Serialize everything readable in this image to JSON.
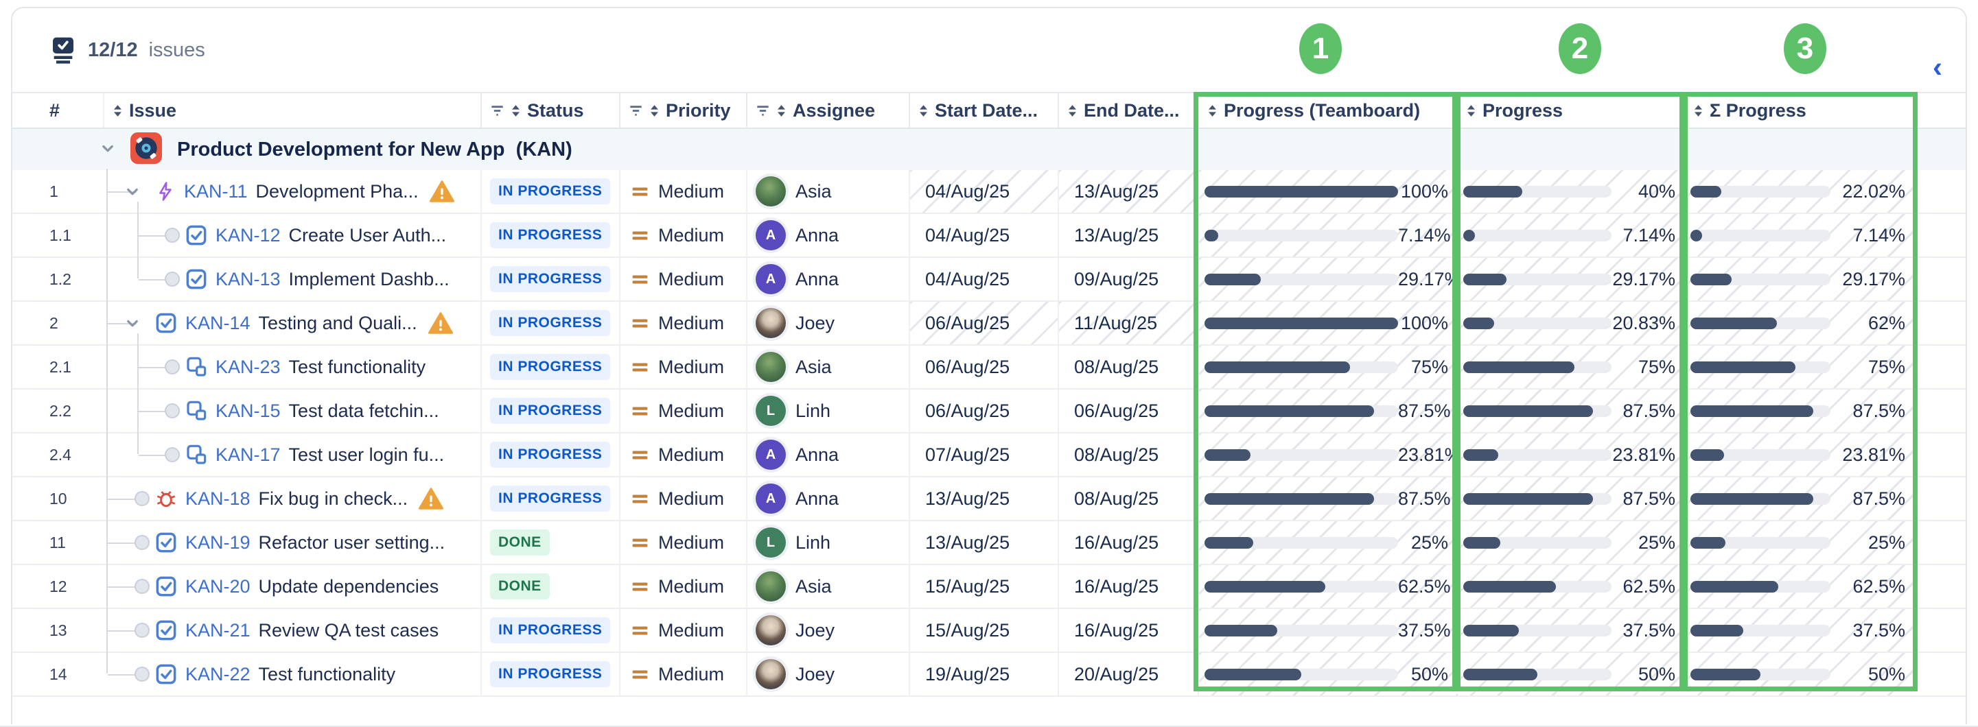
{
  "topbar": {
    "count": "12/12",
    "label": "issues"
  },
  "collapse_chevron": "‹",
  "annotations": {
    "color": "#5cc168",
    "badges": [
      {
        "label": "1",
        "target": "Progress (Teamboard)"
      },
      {
        "label": "2",
        "target": "Progress"
      },
      {
        "label": "3",
        "target": "Σ Progress"
      }
    ]
  },
  "columns": [
    {
      "id": "num",
      "label": "#",
      "filter": false,
      "sort": false
    },
    {
      "id": "issue",
      "label": "Issue",
      "filter": false,
      "sort": true
    },
    {
      "id": "status",
      "label": "Status",
      "filter": true,
      "sort": true
    },
    {
      "id": "priority",
      "label": "Priority",
      "filter": true,
      "sort": true
    },
    {
      "id": "assignee",
      "label": "Assignee",
      "filter": true,
      "sort": true
    },
    {
      "id": "start",
      "label": "Start Date...",
      "filter": false,
      "sort": true
    },
    {
      "id": "end",
      "label": "End Date...",
      "filter": false,
      "sort": true
    },
    {
      "id": "p1",
      "label": "Progress (Teamboard)",
      "filter": false,
      "sort": true
    },
    {
      "id": "p2",
      "label": "Progress",
      "filter": false,
      "sort": true
    },
    {
      "id": "p3",
      "label": "Σ Progress",
      "filter": false,
      "sort": true
    }
  ],
  "group": {
    "title": "Product Development for New App  (KAN)"
  },
  "status_styles": {
    "IN PROGRESS": "inprogress",
    "DONE": "done"
  },
  "rows": [
    {
      "num": "1",
      "level": 1,
      "connector": "chevron",
      "type": "epic",
      "key": "KAN-11",
      "title": "Development Pha...",
      "warning": true,
      "status": "IN PROGRESS",
      "priority": "Medium",
      "assignee": {
        "name": "Asia",
        "avatar": "photo-asia"
      },
      "start": "04/Aug/25",
      "end": "13/Aug/25",
      "dates_hatched": true,
      "p1": {
        "pct": 100,
        "label": "100%"
      },
      "p2": {
        "pct": 40,
        "label": "40%"
      },
      "p3": {
        "pct": 22.02,
        "label": "22.02%"
      }
    },
    {
      "num": "1.1",
      "level": 2,
      "connector": "circle",
      "type": "task",
      "key": "KAN-12",
      "title": "Create User Auth...",
      "warning": false,
      "status": "IN PROGRESS",
      "priority": "Medium",
      "assignee": {
        "name": "Anna",
        "avatar": "initial",
        "initial": "A",
        "color": "#5a4abf"
      },
      "start": "04/Aug/25",
      "end": "13/Aug/25",
      "dates_hatched": false,
      "p1": {
        "pct": 7.14,
        "label": "7.14%"
      },
      "p2": {
        "pct": 7.14,
        "label": "7.14%"
      },
      "p3": {
        "pct": 7.14,
        "label": "7.14%"
      }
    },
    {
      "num": "1.2",
      "level": 2,
      "connector": "circle",
      "type": "task",
      "key": "KAN-13",
      "title": "Implement Dashb...",
      "warning": false,
      "status": "IN PROGRESS",
      "priority": "Medium",
      "assignee": {
        "name": "Anna",
        "avatar": "initial",
        "initial": "A",
        "color": "#5a4abf"
      },
      "start": "04/Aug/25",
      "end": "09/Aug/25",
      "dates_hatched": false,
      "p1": {
        "pct": 29.17,
        "label": "29.17%"
      },
      "p2": {
        "pct": 29.17,
        "label": "29.17%"
      },
      "p3": {
        "pct": 29.17,
        "label": "29.17%"
      }
    },
    {
      "num": "2",
      "level": 1,
      "connector": "chevron",
      "type": "task",
      "key": "KAN-14",
      "title": "Testing and Quali...",
      "warning": true,
      "status": "IN PROGRESS",
      "priority": "Medium",
      "assignee": {
        "name": "Joey",
        "avatar": "photo-joey"
      },
      "start": "06/Aug/25",
      "end": "11/Aug/25",
      "dates_hatched": true,
      "p1": {
        "pct": 100,
        "label": "100%"
      },
      "p2": {
        "pct": 20.83,
        "label": "20.83%"
      },
      "p3": {
        "pct": 62,
        "label": "62%"
      }
    },
    {
      "num": "2.1",
      "level": 2,
      "connector": "circle",
      "type": "subtask",
      "key": "KAN-23",
      "title": "Test functionality",
      "warning": false,
      "status": "IN PROGRESS",
      "priority": "Medium",
      "assignee": {
        "name": "Asia",
        "avatar": "photo-asia"
      },
      "start": "06/Aug/25",
      "end": "08/Aug/25",
      "dates_hatched": false,
      "p1": {
        "pct": 75,
        "label": "75%"
      },
      "p2": {
        "pct": 75,
        "label": "75%"
      },
      "p3": {
        "pct": 75,
        "label": "75%"
      }
    },
    {
      "num": "2.2",
      "level": 2,
      "connector": "circle",
      "type": "subtask",
      "key": "KAN-15",
      "title": "Test data fetchin...",
      "warning": false,
      "status": "IN PROGRESS",
      "priority": "Medium",
      "assignee": {
        "name": "Linh",
        "avatar": "initial",
        "initial": "L",
        "color": "#40805f"
      },
      "start": "06/Aug/25",
      "end": "06/Aug/25",
      "dates_hatched": false,
      "p1": {
        "pct": 87.5,
        "label": "87.5%"
      },
      "p2": {
        "pct": 87.5,
        "label": "87.5%"
      },
      "p3": {
        "pct": 87.5,
        "label": "87.5%"
      }
    },
    {
      "num": "2.4",
      "level": 2,
      "connector": "circle",
      "type": "subtask",
      "key": "KAN-17",
      "title": "Test user login fu...",
      "warning": false,
      "status": "IN PROGRESS",
      "priority": "Medium",
      "assignee": {
        "name": "Anna",
        "avatar": "initial",
        "initial": "A",
        "color": "#5a4abf"
      },
      "start": "07/Aug/25",
      "end": "08/Aug/25",
      "dates_hatched": false,
      "p1": {
        "pct": 23.81,
        "label": "23.81%"
      },
      "p2": {
        "pct": 23.81,
        "label": "23.81%"
      },
      "p3": {
        "pct": 23.81,
        "label": "23.81%"
      }
    },
    {
      "num": "10",
      "level": 1,
      "connector": "circle",
      "type": "bug",
      "key": "KAN-18",
      "title": "Fix bug in check...",
      "warning": true,
      "status": "IN PROGRESS",
      "priority": "Medium",
      "assignee": {
        "name": "Anna",
        "avatar": "initial",
        "initial": "A",
        "color": "#5a4abf"
      },
      "start": "13/Aug/25",
      "end": "08/Aug/25",
      "dates_hatched": false,
      "p1": {
        "pct": 87.5,
        "label": "87.5%"
      },
      "p2": {
        "pct": 87.5,
        "label": "87.5%"
      },
      "p3": {
        "pct": 87.5,
        "label": "87.5%"
      }
    },
    {
      "num": "11",
      "level": 1,
      "connector": "circle",
      "type": "task",
      "key": "KAN-19",
      "title": "Refactor user setting...",
      "warning": false,
      "status": "DONE",
      "priority": "Medium",
      "assignee": {
        "name": "Linh",
        "avatar": "initial",
        "initial": "L",
        "color": "#40805f"
      },
      "start": "13/Aug/25",
      "end": "16/Aug/25",
      "dates_hatched": false,
      "p1": {
        "pct": 25,
        "label": "25%"
      },
      "p2": {
        "pct": 25,
        "label": "25%"
      },
      "p3": {
        "pct": 25,
        "label": "25%"
      }
    },
    {
      "num": "12",
      "level": 1,
      "connector": "circle",
      "type": "task",
      "key": "KAN-20",
      "title": "Update dependencies",
      "warning": false,
      "status": "DONE",
      "priority": "Medium",
      "assignee": {
        "name": "Asia",
        "avatar": "photo-asia"
      },
      "start": "15/Aug/25",
      "end": "16/Aug/25",
      "dates_hatched": false,
      "p1": {
        "pct": 62.5,
        "label": "62.5%"
      },
      "p2": {
        "pct": 62.5,
        "label": "62.5%"
      },
      "p3": {
        "pct": 62.5,
        "label": "62.5%"
      }
    },
    {
      "num": "13",
      "level": 1,
      "connector": "circle",
      "type": "task",
      "key": "KAN-21",
      "title": "Review QA test cases",
      "warning": false,
      "status": "IN PROGRESS",
      "priority": "Medium",
      "assignee": {
        "name": "Joey",
        "avatar": "photo-joey"
      },
      "start": "15/Aug/25",
      "end": "16/Aug/25",
      "dates_hatched": false,
      "p1": {
        "pct": 37.5,
        "label": "37.5%"
      },
      "p2": {
        "pct": 37.5,
        "label": "37.5%"
      },
      "p3": {
        "pct": 37.5,
        "label": "37.5%"
      }
    },
    {
      "num": "14",
      "level": 1,
      "connector": "circle",
      "type": "task",
      "key": "KAN-22",
      "title": "Test functionality",
      "warning": false,
      "status": "IN PROGRESS",
      "priority": "Medium",
      "assignee": {
        "name": "Joey",
        "avatar": "photo-joey"
      },
      "start": "19/Aug/25",
      "end": "20/Aug/25",
      "dates_hatched": false,
      "p1": {
        "pct": 50,
        "label": "50%"
      },
      "p2": {
        "pct": 50,
        "label": "50%"
      },
      "p3": {
        "pct": 50,
        "label": "50%"
      }
    }
  ]
}
